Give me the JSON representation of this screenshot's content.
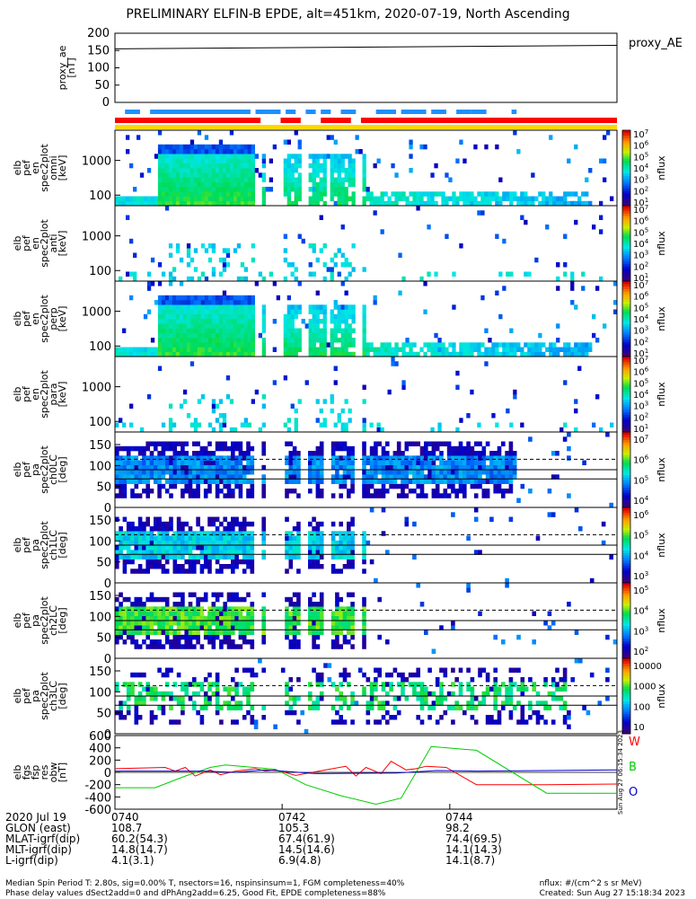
{
  "title": "PRELIMINARY ELFIN-B EPDE, alt=451km, 2020-07-19, North Ascending",
  "colors": {
    "ae_line": "#000000",
    "bar_blue": "#1e90ff",
    "bar_red": "#ff0000",
    "bar_yellow": "#ffd700",
    "res_W": "#ff0000",
    "res_B": "#00cc00",
    "res_O": "#0000cc"
  },
  "chart_data": [
    {
      "type": "line",
      "name": "proxy_ae",
      "ylabel_lines": [
        "proxy_ae",
        "[nT]"
      ],
      "ylim": [
        0,
        200
      ],
      "ytick_labels": [
        "0",
        "50",
        "100",
        "150",
        "200"
      ],
      "legend": "proxy_AE",
      "x": [
        0,
        1
      ],
      "y": [
        155,
        165
      ]
    },
    {
      "type": "heatmap",
      "name": "pef_en_spec2plot_omni",
      "ylabel_lines": [
        "elb",
        "pef",
        "en",
        "spec2plot",
        "omni",
        "[keV]"
      ],
      "ytick_labels": [
        "100",
        "1000"
      ],
      "scale": "log",
      "colorbar": {
        "label": "nflux",
        "ticks": [
          "10^1",
          "10^2",
          "10^3",
          "10^4",
          "10^5",
          "10^6",
          "10^7"
        ]
      }
    },
    {
      "type": "heatmap",
      "name": "pef_en_spec2plot_anti",
      "ylabel_lines": [
        "elb",
        "pef",
        "en",
        "spec2plot",
        "anti",
        "[keV]"
      ],
      "ytick_labels": [
        "100",
        "1000"
      ],
      "scale": "log",
      "colorbar": {
        "label": "nflux",
        "ticks": [
          "10^1",
          "10^2",
          "10^3",
          "10^4",
          "10^5",
          "10^6",
          "10^7"
        ]
      }
    },
    {
      "type": "heatmap",
      "name": "pef_en_spec2plot_perp",
      "ylabel_lines": [
        "elb",
        "pef",
        "en",
        "spec2plot",
        "perp",
        "[keV]"
      ],
      "ytick_labels": [
        "100",
        "1000"
      ],
      "scale": "log",
      "colorbar": {
        "label": "nflux",
        "ticks": [
          "10^1",
          "10^2",
          "10^3",
          "10^4",
          "10^5",
          "10^6",
          "10^7"
        ]
      }
    },
    {
      "type": "heatmap",
      "name": "pef_en_spec2plot_para",
      "ylabel_lines": [
        "elb",
        "pef",
        "en",
        "spec2plot",
        "para",
        "[keV]"
      ],
      "ytick_labels": [
        "100",
        "1000"
      ],
      "scale": "log",
      "colorbar": {
        "label": "nflux",
        "ticks": [
          "10^1",
          "10^2",
          "10^3",
          "10^4",
          "10^5",
          "10^6",
          "10^7"
        ]
      }
    },
    {
      "type": "heatmap",
      "name": "pef_pa_spec2plot_ch0LC",
      "ylabel_lines": [
        "elb",
        "pef",
        "pa",
        "spec2plot",
        "ch0LC",
        "[deg]"
      ],
      "ylim": [
        0,
        180
      ],
      "ytick_labels": [
        "0",
        "50",
        "100",
        "150"
      ],
      "colorbar": {
        "label": "nflux",
        "ticks": [
          "10^4",
          "10^5",
          "10^6",
          "10^7"
        ]
      }
    },
    {
      "type": "heatmap",
      "name": "pef_pa_spec2plot_ch1LC",
      "ylabel_lines": [
        "elb",
        "pef",
        "pa",
        "spec2plot",
        "ch1LC",
        "[deg]"
      ],
      "ylim": [
        0,
        180
      ],
      "ytick_labels": [
        "0",
        "50",
        "100",
        "150"
      ],
      "colorbar": {
        "label": "nflux",
        "ticks": [
          "10^3",
          "10^4",
          "10^5",
          "10^6"
        ]
      }
    },
    {
      "type": "heatmap",
      "name": "pef_pa_spec2plot_ch2LC",
      "ylabel_lines": [
        "elb",
        "pef",
        "pa",
        "spec2plot",
        "ch2LC",
        "[deg]"
      ],
      "ylim": [
        0,
        180
      ],
      "ytick_labels": [
        "0",
        "50",
        "100",
        "150"
      ],
      "colorbar": {
        "label": "nflux",
        "ticks": [
          "10^2",
          "10^3",
          "10^4",
          "10^5"
        ]
      }
    },
    {
      "type": "heatmap",
      "name": "pef_pa_spec2plot_ch3LC",
      "ylabel_lines": [
        "elb",
        "pef",
        "pa",
        "spec2plot",
        "ch3LC",
        "[deg]"
      ],
      "ylim": [
        0,
        180
      ],
      "ytick_labels": [
        "0",
        "50",
        "100",
        "150"
      ],
      "colorbar": {
        "label": "nflux",
        "ticks": [
          "10",
          "100",
          "1000",
          "10000"
        ]
      }
    },
    {
      "type": "line",
      "name": "fgs_fsp_res_obw",
      "ylabel_lines": [
        "elb",
        "fgs",
        "fsp",
        "res",
        "obw",
        "[nT]"
      ],
      "ylim": [
        -600,
        600
      ],
      "ytick_labels": [
        "-600",
        "-400",
        "-200",
        "0",
        "200",
        "400",
        "600"
      ],
      "legend": [
        "W",
        "B",
        "O"
      ],
      "timestamp": "Sun Aug 27 06:15:34 2023",
      "series": [
        {
          "name": "W",
          "x": [
            0.0,
            0.1,
            0.12,
            0.14,
            0.16,
            0.19,
            0.21,
            0.24,
            0.28,
            0.3,
            0.32,
            0.36,
            0.42,
            0.46,
            0.48,
            0.5,
            0.53,
            0.55,
            0.58,
            0.6,
            0.62,
            0.66,
            0.72,
            0.86,
            1.0
          ],
          "y": [
            60,
            80,
            20,
            80,
            -60,
            40,
            -40,
            20,
            60,
            20,
            40,
            -50,
            40,
            100,
            -60,
            80,
            -20,
            180,
            40,
            60,
            100,
            80,
            -200,
            -200,
            -190
          ]
        },
        {
          "name": "B",
          "x": [
            0.0,
            0.08,
            0.14,
            0.19,
            0.22,
            0.32,
            0.38,
            0.45,
            0.52,
            0.57,
            0.63,
            0.72,
            0.86,
            1.0
          ],
          "y": [
            -250,
            -250,
            -60,
            80,
            120,
            50,
            -200,
            -380,
            -520,
            -420,
            420,
            360,
            -340,
            -340
          ]
        },
        {
          "name": "O",
          "x": [
            0.0,
            0.18,
            0.24,
            0.3,
            0.4,
            0.56,
            0.64,
            0.72,
            1.0
          ],
          "y": [
            20,
            20,
            0,
            40,
            -20,
            -10,
            30,
            20,
            40
          ]
        }
      ]
    }
  ],
  "footer": {
    "rows": [
      [
        "2020 Jul 19",
        "0740",
        "0742",
        "0744"
      ],
      [
        "GLON (east)",
        "108.7",
        "105.3",
        "98.2"
      ],
      [
        "MLAT-igrf(dip)",
        "60.2(54.3)",
        "67.4(61.9)",
        "74.4(69.5)"
      ],
      [
        "MLT-igrf(dip)",
        "14.8(14.7)",
        "14.5(14.6)",
        "14.1(14.3)"
      ],
      [
        "L-igrf(dip)",
        "4.1(3.1)",
        "6.9(4.8)",
        "14.1(8.7)"
      ]
    ],
    "note_line1": "Median Spin Period T: 2.80s, sig=0.00% T, nsectors=16, nspinsinsum=1, FGM completeness=40%",
    "note_line2": "Phase delay values dSect2add=0 and dPhAng2add=6.25, Good Fit, EPDE completeness=88%",
    "nflux_units": "nflux: #/(cm^2 s sr MeV)",
    "created": "Created: Sun Aug 27 15:18:34 2023"
  }
}
